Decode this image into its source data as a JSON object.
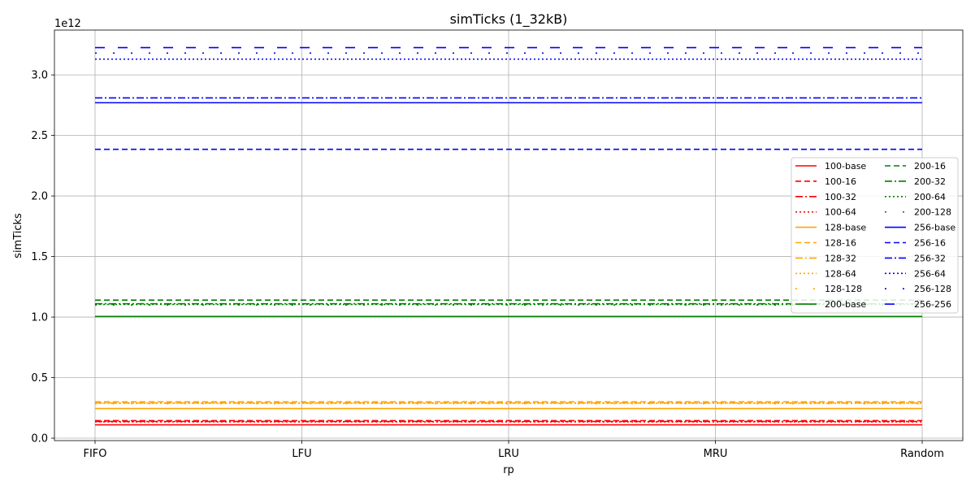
{
  "chart_data": {
    "type": "line",
    "title": "simTicks (1_32kB)",
    "xlabel": "rp",
    "ylabel": "simTicks",
    "y_offset_label": "1e12",
    "categories": [
      "FIFO",
      "LFU",
      "LRU",
      "MRU",
      "Random"
    ],
    "ylim": [
      -0.02,
      3.37
    ],
    "y_ticks": [
      0.0,
      0.5,
      1.0,
      1.5,
      2.0,
      2.5,
      3.0
    ],
    "y_tick_labels": [
      "0.0",
      "0.5",
      "1.0",
      "1.5",
      "2.0",
      "2.5",
      "3.0"
    ],
    "y_unit_multiplier": 1000000000000.0,
    "grid": true,
    "legend": {
      "position": "center-right",
      "columns": 2
    },
    "series": [
      {
        "name": "100-base",
        "color": "#ff0000",
        "style": "solid",
        "values": [
          0.11,
          0.11,
          0.11,
          0.11,
          0.11
        ]
      },
      {
        "name": "100-16",
        "color": "#ff0000",
        "style": "dashed",
        "values": [
          0.145,
          0.145,
          0.145,
          0.145,
          0.145
        ]
      },
      {
        "name": "100-32",
        "color": "#ff0000",
        "style": "dashdot",
        "values": [
          0.138,
          0.138,
          0.138,
          0.138,
          0.138
        ]
      },
      {
        "name": "100-64",
        "color": "#ff0000",
        "style": "dotted",
        "values": [
          0.135,
          0.135,
          0.135,
          0.135,
          0.135
        ]
      },
      {
        "name": "128-base",
        "color": "#ffa500",
        "style": "solid",
        "values": [
          0.245,
          0.245,
          0.245,
          0.245,
          0.245
        ]
      },
      {
        "name": "128-16",
        "color": "#ffa500",
        "style": "dashed",
        "values": [
          0.3,
          0.3,
          0.3,
          0.3,
          0.3
        ]
      },
      {
        "name": "128-32",
        "color": "#ffa500",
        "style": "dashdot",
        "values": [
          0.292,
          0.292,
          0.292,
          0.292,
          0.292
        ]
      },
      {
        "name": "128-64",
        "color": "#ffa500",
        "style": "dotted",
        "values": [
          0.288,
          0.288,
          0.288,
          0.288,
          0.288
        ]
      },
      {
        "name": "128-128",
        "color": "#ffa500",
        "style": "sparse",
        "values": [
          0.285,
          0.285,
          0.285,
          0.285,
          0.285
        ]
      },
      {
        "name": "200-base",
        "color": "#008000",
        "style": "solid",
        "values": [
          1.005,
          1.005,
          1.005,
          1.005,
          1.005
        ]
      },
      {
        "name": "200-16",
        "color": "#008000",
        "style": "dashed",
        "values": [
          1.14,
          1.14,
          1.14,
          1.14,
          1.14
        ]
      },
      {
        "name": "200-32",
        "color": "#008000",
        "style": "dashdot",
        "values": [
          1.11,
          1.11,
          1.11,
          1.11,
          1.11
        ]
      },
      {
        "name": "200-64",
        "color": "#008000",
        "style": "dotted",
        "values": [
          1.105,
          1.105,
          1.105,
          1.105,
          1.105
        ]
      },
      {
        "name": "200-128",
        "color": "#008000",
        "style": "sparse",
        "values": [
          1.1,
          1.1,
          1.1,
          1.1,
          1.1
        ]
      },
      {
        "name": "256-base",
        "color": "#0000ff",
        "style": "solid",
        "values": [
          2.77,
          2.77,
          2.77,
          2.77,
          2.77
        ]
      },
      {
        "name": "256-16",
        "color": "#0000ff",
        "style": "dashed",
        "values": [
          2.385,
          2.385,
          2.385,
          2.385,
          2.385
        ]
      },
      {
        "name": "256-32",
        "color": "#0000ff",
        "style": "dashdot",
        "values": [
          2.81,
          2.81,
          2.81,
          2.81,
          2.81
        ]
      },
      {
        "name": "256-64",
        "color": "#0000ff",
        "style": "dotted",
        "values": [
          3.13,
          3.13,
          3.13,
          3.13,
          3.13
        ]
      },
      {
        "name": "256-128",
        "color": "#0000ff",
        "style": "sparse",
        "values": [
          3.18,
          3.18,
          3.18,
          3.18,
          3.18
        ]
      },
      {
        "name": "256-256",
        "color": "#0000ff",
        "style": "longdash",
        "values": [
          3.225,
          3.225,
          3.225,
          3.225,
          3.225
        ]
      }
    ]
  }
}
